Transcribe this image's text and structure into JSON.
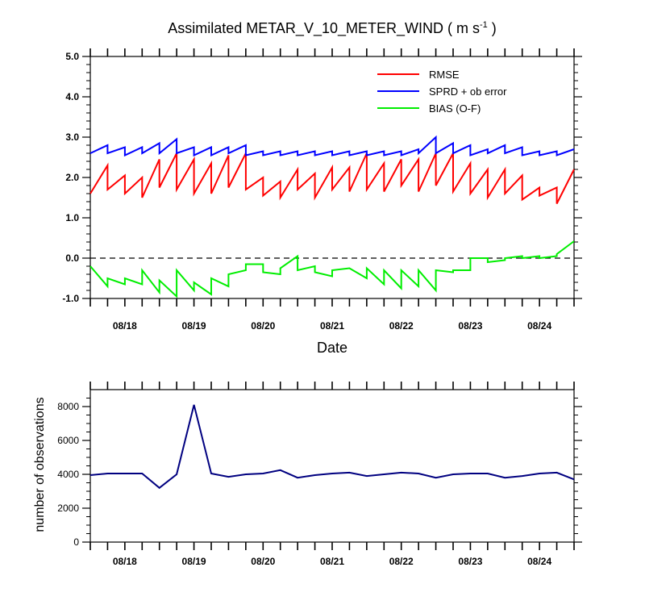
{
  "chart_data": [
    {
      "type": "line",
      "title": "Assimilated METAR_V_10_METER_WIND ( m s",
      "title_unit_sup": "-1",
      "title_tail": " )",
      "xlabel": "Date",
      "ylabel": "",
      "ylim": [
        -1.0,
        5.0
      ],
      "yticks": [
        "5.0",
        "4.0",
        "3.0",
        "2.0",
        "1.0",
        "0.0",
        "-1.0"
      ],
      "ytick_values": [
        5,
        4,
        3,
        2,
        1,
        0,
        -1
      ],
      "xlim": [
        0,
        42
      ],
      "xticks": [
        "08/18",
        "08/19",
        "08/20",
        "08/21",
        "08/22",
        "08/23",
        "08/24"
      ],
      "xtick_values": [
        3,
        9,
        15,
        21,
        27,
        33,
        39
      ],
      "zero_line": {
        "y": 0,
        "style": "dashed"
      },
      "legend_position": "top-right",
      "series": [
        {
          "name": "RMSE",
          "color": "#ff0000",
          "x": [
            0,
            1.5,
            1.5,
            3,
            3,
            4.5,
            4.5,
            6,
            6,
            7.5,
            7.5,
            9,
            9,
            10.5,
            10.5,
            12,
            12,
            13.5,
            13.5,
            15,
            15,
            16.5,
            16.5,
            18,
            18,
            19.5,
            19.5,
            21,
            21,
            22.5,
            22.5,
            24,
            24,
            25.5,
            25.5,
            27,
            27,
            28.5,
            28.5,
            30,
            30,
            31.5,
            31.5,
            33,
            33,
            34.5,
            34.5,
            36,
            36,
            37.5,
            37.5,
            39,
            39,
            40.5,
            40.5,
            42
          ],
          "values": [
            1.6,
            2.3,
            1.7,
            2.05,
            1.6,
            2.0,
            1.5,
            2.45,
            1.75,
            2.6,
            1.7,
            2.45,
            1.6,
            2.35,
            1.6,
            2.55,
            1.75,
            2.6,
            1.7,
            2.0,
            1.55,
            1.9,
            1.5,
            2.2,
            1.7,
            2.1,
            1.5,
            2.25,
            1.7,
            2.25,
            1.65,
            2.6,
            1.7,
            2.35,
            1.65,
            2.45,
            1.8,
            2.45,
            1.65,
            2.6,
            1.8,
            2.6,
            1.65,
            2.35,
            1.6,
            2.2,
            1.5,
            2.2,
            1.6,
            2.05,
            1.45,
            1.75,
            1.55,
            1.75,
            1.35,
            2.2
          ]
        },
        {
          "name": "SPRD + ob error",
          "color": "#0000ff",
          "x": [
            0,
            1.5,
            1.5,
            3,
            3,
            4.5,
            4.5,
            6,
            6,
            7.5,
            7.5,
            9,
            9,
            10.5,
            10.5,
            12,
            12,
            13.5,
            13.5,
            15,
            15,
            16.5,
            16.5,
            18,
            18,
            19.5,
            19.5,
            21,
            21,
            22.5,
            22.5,
            24,
            24,
            25.5,
            25.5,
            27,
            27,
            28.5,
            28.5,
            30,
            30,
            31.5,
            31.5,
            33,
            33,
            34.5,
            34.5,
            36,
            36,
            37.5,
            37.5,
            39,
            39,
            40.5,
            40.5,
            42
          ],
          "values": [
            2.6,
            2.8,
            2.6,
            2.75,
            2.55,
            2.75,
            2.6,
            2.85,
            2.6,
            2.95,
            2.6,
            2.75,
            2.55,
            2.75,
            2.55,
            2.75,
            2.6,
            2.8,
            2.55,
            2.65,
            2.55,
            2.65,
            2.55,
            2.65,
            2.55,
            2.65,
            2.55,
            2.65,
            2.55,
            2.65,
            2.55,
            2.65,
            2.55,
            2.65,
            2.55,
            2.65,
            2.55,
            2.7,
            2.6,
            3.0,
            2.6,
            2.85,
            2.6,
            2.8,
            2.55,
            2.7,
            2.6,
            2.8,
            2.6,
            2.75,
            2.55,
            2.65,
            2.55,
            2.65,
            2.55,
            2.7
          ]
        },
        {
          "name": "BIAS (O-F)",
          "color": "#00ee00",
          "x": [
            0,
            1.5,
            1.5,
            3,
            3,
            4.5,
            4.5,
            6,
            6,
            7.5,
            7.5,
            9,
            9,
            10.5,
            10.5,
            12,
            12,
            13.5,
            13.5,
            15,
            15,
            16.5,
            16.5,
            18,
            18,
            19.5,
            19.5,
            21,
            21,
            22.5,
            22.5,
            24,
            24,
            25.5,
            25.5,
            27,
            27,
            28.5,
            28.5,
            30,
            30,
            31.5,
            31.5,
            33,
            33,
            34.5,
            34.5,
            36,
            36,
            37.5,
            37.5,
            39,
            39,
            40.5,
            40.5,
            42
          ],
          "values": [
            -0.2,
            -0.7,
            -0.5,
            -0.65,
            -0.5,
            -0.65,
            -0.3,
            -0.85,
            -0.55,
            -0.95,
            -0.3,
            -0.8,
            -0.6,
            -0.9,
            -0.5,
            -0.7,
            -0.4,
            -0.3,
            -0.15,
            -0.15,
            -0.35,
            -0.4,
            -0.25,
            0.05,
            -0.3,
            -0.2,
            -0.35,
            -0.45,
            -0.3,
            -0.25,
            -0.25,
            -0.5,
            -0.25,
            -0.65,
            -0.3,
            -0.75,
            -0.3,
            -0.7,
            -0.3,
            -0.8,
            -0.3,
            -0.35,
            -0.3,
            -0.3,
            0.0,
            0.0,
            -0.1,
            -0.05,
            0.0,
            0.05,
            0.0,
            0.05,
            0.0,
            0.05,
            0.1,
            0.42
          ]
        }
      ]
    },
    {
      "type": "line",
      "title": "",
      "xlabel": "",
      "ylabel": "number of observations",
      "ylim": [
        0,
        9000
      ],
      "yticks": [
        "8000",
        "6000",
        "4000",
        "2000",
        "0"
      ],
      "ytick_values": [
        8000,
        6000,
        4000,
        2000,
        0
      ],
      "xlim": [
        0,
        42
      ],
      "xticks": [
        "08/18",
        "08/19",
        "08/20",
        "08/21",
        "08/22",
        "08/23",
        "08/24"
      ],
      "xtick_values": [
        3,
        9,
        15,
        21,
        27,
        33,
        39
      ],
      "series": [
        {
          "name": "number of observations",
          "color": "#000080",
          "x": [
            0,
            1.5,
            3,
            4.5,
            6,
            7.5,
            9,
            10.5,
            12,
            13.5,
            15,
            16.5,
            18,
            19.5,
            21,
            22.5,
            24,
            25.5,
            27,
            28.5,
            30,
            31.5,
            33,
            34.5,
            36,
            37.5,
            39,
            40.5,
            42
          ],
          "values": [
            3950,
            4050,
            4050,
            4050,
            3200,
            4000,
            8100,
            4050,
            3850,
            4000,
            4050,
            4250,
            3800,
            3950,
            4050,
            4100,
            3900,
            4000,
            4100,
            4050,
            3800,
            4000,
            4050,
            4050,
            3800,
            3900,
            4050,
            4100,
            3700
          ]
        }
      ]
    }
  ]
}
